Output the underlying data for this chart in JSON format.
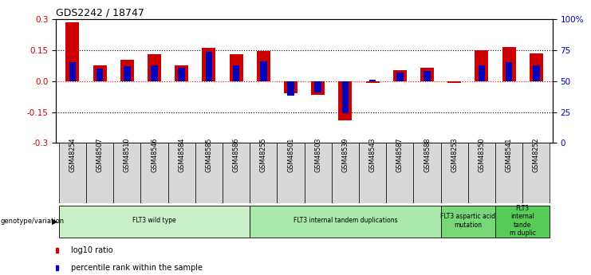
{
  "title": "GDS2242 / 18747",
  "samples": [
    "GSM48254",
    "GSM48507",
    "GSM48510",
    "GSM48546",
    "GSM48584",
    "GSM48585",
    "GSM48586",
    "GSM48255",
    "GSM48501",
    "GSM48503",
    "GSM48539",
    "GSM48543",
    "GSM48587",
    "GSM48588",
    "GSM48253",
    "GSM48350",
    "GSM48541",
    "GSM48252"
  ],
  "log10_ratio": [
    0.285,
    0.075,
    0.105,
    0.13,
    0.075,
    0.16,
    0.13,
    0.145,
    -0.06,
    -0.065,
    -0.19,
    -0.01,
    0.055,
    0.065,
    -0.01,
    0.148,
    0.165,
    0.135
  ],
  "percentile_rank_raw": [
    65,
    60,
    62,
    63,
    61,
    74,
    63,
    66,
    38,
    41,
    24,
    51,
    57,
    58,
    50,
    63,
    65,
    63
  ],
  "groups": [
    {
      "label": "FLT3 wild type",
      "start": 0,
      "end": 7,
      "color": "#c8efc8"
    },
    {
      "label": "FLT3 internal tandem duplications",
      "start": 7,
      "end": 14,
      "color": "#a8e8a8"
    },
    {
      "label": "FLT3 aspartic acid\nmutation",
      "start": 14,
      "end": 16,
      "color": "#78d878"
    },
    {
      "label": "FLT3\ninternal\ntande\nm duplic",
      "start": 16,
      "end": 18,
      "color": "#58cc58"
    }
  ],
  "ylim_left": [
    -0.3,
    0.3
  ],
  "ylim_right": [
    0,
    100
  ],
  "yticks_left": [
    -0.3,
    -0.15,
    0.0,
    0.15,
    0.3
  ],
  "yticks_right": [
    0,
    25,
    50,
    75,
    100
  ],
  "ytick_labels_right": [
    "0",
    "25",
    "50",
    "75",
    "100%"
  ],
  "red_color": "#cc0000",
  "blue_color": "#0000bb",
  "red_bar_width": 0.5,
  "blue_bar_width": 0.25,
  "legend_items": [
    {
      "label": "log10 ratio",
      "color": "#cc0000"
    },
    {
      "label": "percentile rank within the sample",
      "color": "#0000bb"
    }
  ]
}
